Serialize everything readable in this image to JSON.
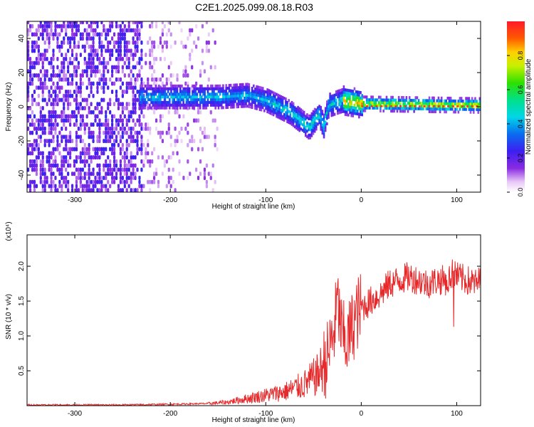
{
  "title": "C2E1.2025.099.08.18.R03",
  "chart_data": [
    {
      "type": "heatmap",
      "xlabel": "Height of straight line (km)",
      "ylabel": "Frequency (Hz)",
      "xlim": [
        -350,
        125
      ],
      "ylim": [
        -50,
        50
      ],
      "xticks": [
        -300,
        -200,
        -100,
        0,
        100
      ],
      "yticks": [
        -40,
        -20,
        0,
        20,
        40
      ],
      "colorbar": {
        "label": "Normalized spectral amplitude",
        "range": [
          0,
          1
        ],
        "ticks": [
          "0.0",
          "0.2",
          "0.4",
          "0.6",
          "0.8"
        ],
        "colormap": "rainbow (white-violet-blue-cyan-green-yellow-red)"
      },
      "description_of_structure": {
        "noise_region_x": [
          -350,
          -155
        ],
        "signal_band": [
          {
            "x": -230,
            "f": 5
          },
          {
            "x": -200,
            "f": 5
          },
          {
            "x": -150,
            "f": 5
          },
          {
            "x": -120,
            "f": 6
          },
          {
            "x": -100,
            "f": 3
          },
          {
            "x": -75,
            "f": -4
          },
          {
            "x": -55,
            "f": -13
          },
          {
            "x": -45,
            "f": -5
          },
          {
            "x": -40,
            "f": -12
          },
          {
            "x": -35,
            "f": 0
          },
          {
            "x": -20,
            "f": 3
          },
          {
            "x": 0,
            "f": 1
          },
          {
            "x": 125,
            "f": 0
          }
        ]
      }
    },
    {
      "type": "line",
      "xlabel": "Height of straight line (km)",
      "ylabel": "SNR (10 * v/v)",
      "yscale_label": "(x10⁴)",
      "xlim": [
        -350,
        125
      ],
      "ylim": [
        0,
        2.45
      ],
      "xticks": [
        -300,
        -200,
        -100,
        0,
        100
      ],
      "yticks": [
        "0.5",
        "1.0",
        "1.5",
        "2.0"
      ],
      "series": [
        {
          "color": "#e8292b",
          "x": [
            -350,
            -300,
            -250,
            -200,
            -160,
            -140,
            -120,
            -100,
            -80,
            -60,
            -45,
            -35,
            -28,
            -25,
            -20,
            -15,
            -10,
            -5,
            0,
            10,
            20,
            30,
            40,
            50,
            60,
            70,
            80,
            90,
            95,
            100,
            110,
            120,
            125
          ],
          "y": [
            0.01,
            0.01,
            0.01,
            0.02,
            0.03,
            0.05,
            0.1,
            0.15,
            0.2,
            0.3,
            0.45,
            0.7,
            1.1,
            1.5,
            1.0,
            0.9,
            1.1,
            1.3,
            1.4,
            1.5,
            1.6,
            1.75,
            1.8,
            1.85,
            1.8,
            1.75,
            1.8,
            1.8,
            1.9,
            1.85,
            1.8,
            1.75,
            1.8
          ]
        }
      ]
    }
  ]
}
